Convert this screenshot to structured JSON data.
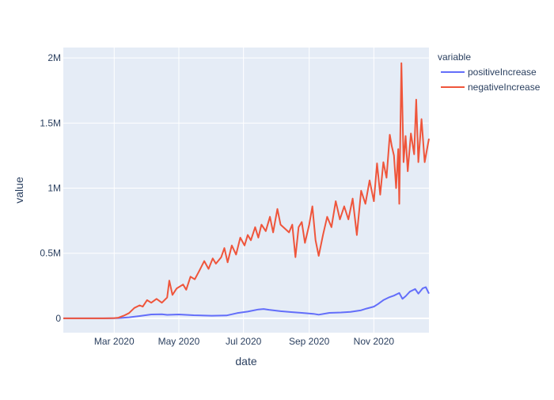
{
  "chart_data": {
    "type": "line",
    "xlabel": "date",
    "ylabel": "value",
    "legend_title": "variable",
    "legend_position": "top-right",
    "grid": true,
    "x_range": [
      "2020-01-13",
      "2020-12-23"
    ],
    "ylim": [
      -110000,
      2080000
    ],
    "x_ticks": [
      {
        "date": "2020-03-01",
        "label": "Mar 2020"
      },
      {
        "date": "2020-05-01",
        "label": "May 2020"
      },
      {
        "date": "2020-07-01",
        "label": "Jul 2020"
      },
      {
        "date": "2020-09-01",
        "label": "Sep 2020"
      },
      {
        "date": "2020-11-01",
        "label": "Nov 2020"
      }
    ],
    "y_ticks": [
      {
        "value": 0,
        "label": "0"
      },
      {
        "value": 500000,
        "label": "0.5M"
      },
      {
        "value": 1000000,
        "label": "1M"
      },
      {
        "value": 1500000,
        "label": "1.5M"
      },
      {
        "value": 2000000,
        "label": "2M"
      }
    ],
    "series": [
      {
        "name": "positiveIncrease",
        "color": "#636efa",
        "points": [
          [
            "2020-01-13",
            0
          ],
          [
            "2020-02-25",
            0
          ],
          [
            "2020-03-05",
            2000
          ],
          [
            "2020-03-15",
            8000
          ],
          [
            "2020-03-25",
            18000
          ],
          [
            "2020-04-05",
            30000
          ],
          [
            "2020-04-15",
            32000
          ],
          [
            "2020-04-20",
            27000
          ],
          [
            "2020-05-01",
            30000
          ],
          [
            "2020-05-15",
            24000
          ],
          [
            "2020-06-01",
            20000
          ],
          [
            "2020-06-15",
            22000
          ],
          [
            "2020-06-25",
            40000
          ],
          [
            "2020-07-05",
            52000
          ],
          [
            "2020-07-15",
            68000
          ],
          [
            "2020-07-20",
            72000
          ],
          [
            "2020-07-25",
            66000
          ],
          [
            "2020-08-05",
            55000
          ],
          [
            "2020-08-15",
            48000
          ],
          [
            "2020-08-25",
            42000
          ],
          [
            "2020-09-05",
            35000
          ],
          [
            "2020-09-10",
            28000
          ],
          [
            "2020-09-20",
            42000
          ],
          [
            "2020-10-01",
            45000
          ],
          [
            "2020-10-10",
            50000
          ],
          [
            "2020-10-20",
            62000
          ],
          [
            "2020-10-25",
            75000
          ],
          [
            "2020-11-01",
            90000
          ],
          [
            "2020-11-05",
            110000
          ],
          [
            "2020-11-10",
            140000
          ],
          [
            "2020-11-15",
            160000
          ],
          [
            "2020-11-20",
            175000
          ],
          [
            "2020-11-25",
            195000
          ],
          [
            "2020-11-28",
            150000
          ],
          [
            "2020-12-01",
            170000
          ],
          [
            "2020-12-05",
            205000
          ],
          [
            "2020-12-10",
            225000
          ],
          [
            "2020-12-13",
            190000
          ],
          [
            "2020-12-17",
            230000
          ],
          [
            "2020-12-20",
            240000
          ],
          [
            "2020-12-23",
            190000
          ]
        ]
      },
      {
        "name": "negativeIncrease",
        "color": "#ef553b",
        "points": [
          [
            "2020-01-13",
            0
          ],
          [
            "2020-02-20",
            0
          ],
          [
            "2020-03-01",
            2000
          ],
          [
            "2020-03-05",
            5000
          ],
          [
            "2020-03-10",
            20000
          ],
          [
            "2020-03-15",
            40000
          ],
          [
            "2020-03-20",
            80000
          ],
          [
            "2020-03-25",
            100000
          ],
          [
            "2020-03-28",
            90000
          ],
          [
            "2020-04-01",
            140000
          ],
          [
            "2020-04-05",
            120000
          ],
          [
            "2020-04-10",
            150000
          ],
          [
            "2020-04-15",
            120000
          ],
          [
            "2020-04-20",
            160000
          ],
          [
            "2020-04-22",
            290000
          ],
          [
            "2020-04-25",
            180000
          ],
          [
            "2020-04-29",
            230000
          ],
          [
            "2020-05-05",
            260000
          ],
          [
            "2020-05-08",
            220000
          ],
          [
            "2020-05-12",
            320000
          ],
          [
            "2020-05-16",
            300000
          ],
          [
            "2020-05-20",
            360000
          ],
          [
            "2020-05-25",
            440000
          ],
          [
            "2020-05-29",
            380000
          ],
          [
            "2020-06-02",
            460000
          ],
          [
            "2020-06-05",
            420000
          ],
          [
            "2020-06-10",
            470000
          ],
          [
            "2020-06-13",
            540000
          ],
          [
            "2020-06-16",
            430000
          ],
          [
            "2020-06-20",
            560000
          ],
          [
            "2020-06-24",
            490000
          ],
          [
            "2020-06-28",
            620000
          ],
          [
            "2020-07-02",
            560000
          ],
          [
            "2020-07-05",
            640000
          ],
          [
            "2020-07-08",
            600000
          ],
          [
            "2020-07-12",
            700000
          ],
          [
            "2020-07-15",
            620000
          ],
          [
            "2020-07-18",
            720000
          ],
          [
            "2020-07-22",
            670000
          ],
          [
            "2020-07-26",
            780000
          ],
          [
            "2020-07-29",
            660000
          ],
          [
            "2020-08-02",
            840000
          ],
          [
            "2020-08-05",
            720000
          ],
          [
            "2020-08-09",
            690000
          ],
          [
            "2020-08-13",
            660000
          ],
          [
            "2020-08-16",
            720000
          ],
          [
            "2020-08-19",
            470000
          ],
          [
            "2020-08-22",
            700000
          ],
          [
            "2020-08-25",
            740000
          ],
          [
            "2020-08-28",
            580000
          ],
          [
            "2020-09-01",
            720000
          ],
          [
            "2020-09-04",
            860000
          ],
          [
            "2020-09-07",
            600000
          ],
          [
            "2020-09-10",
            480000
          ],
          [
            "2020-09-14",
            640000
          ],
          [
            "2020-09-18",
            780000
          ],
          [
            "2020-09-22",
            700000
          ],
          [
            "2020-09-26",
            900000
          ],
          [
            "2020-09-30",
            760000
          ],
          [
            "2020-10-04",
            860000
          ],
          [
            "2020-10-08",
            760000
          ],
          [
            "2020-10-12",
            920000
          ],
          [
            "2020-10-16",
            640000
          ],
          [
            "2020-10-20",
            980000
          ],
          [
            "2020-10-24",
            880000
          ],
          [
            "2020-10-28",
            1060000
          ],
          [
            "2020-11-01",
            900000
          ],
          [
            "2020-11-04",
            1190000
          ],
          [
            "2020-11-07",
            950000
          ],
          [
            "2020-11-10",
            1200000
          ],
          [
            "2020-11-13",
            1080000
          ],
          [
            "2020-11-16",
            1410000
          ],
          [
            "2020-11-18",
            1320000
          ],
          [
            "2020-11-20",
            1250000
          ],
          [
            "2020-11-22",
            1000000
          ],
          [
            "2020-11-24",
            1300000
          ],
          [
            "2020-11-25",
            880000
          ],
          [
            "2020-11-27",
            1960000
          ],
          [
            "2020-11-29",
            1200000
          ],
          [
            "2020-12-01",
            1400000
          ],
          [
            "2020-12-03",
            1130000
          ],
          [
            "2020-12-06",
            1420000
          ],
          [
            "2020-12-09",
            1260000
          ],
          [
            "2020-12-11",
            1680000
          ],
          [
            "2020-12-13",
            1200000
          ],
          [
            "2020-12-16",
            1530000
          ],
          [
            "2020-12-19",
            1200000
          ],
          [
            "2020-12-23",
            1380000
          ]
        ]
      }
    ]
  }
}
